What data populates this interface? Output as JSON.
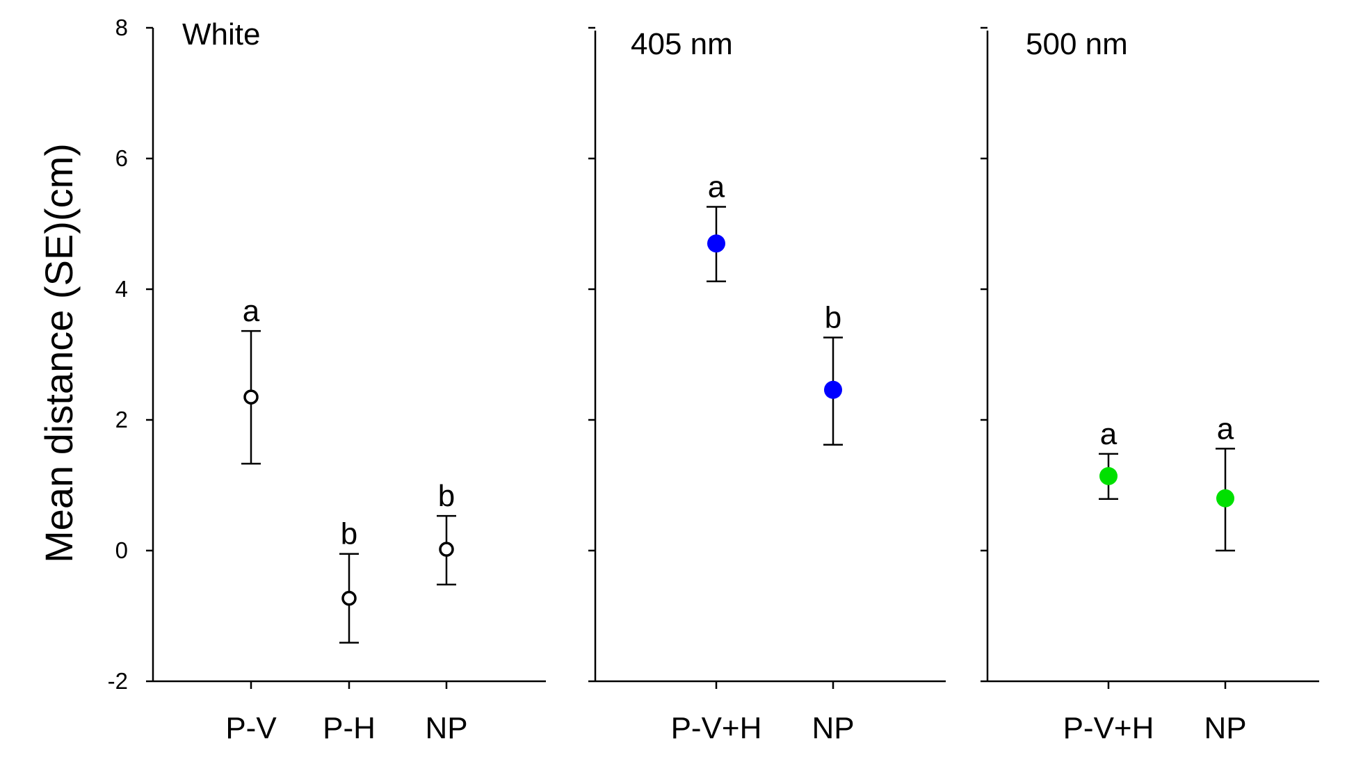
{
  "chart_data": {
    "type": "scatter",
    "y_title": "Mean distance (SE)(cm)",
    "ylim": [
      -2,
      8
    ],
    "yticks": [
      -2,
      0,
      2,
      4,
      6,
      8
    ],
    "yticklabels": [
      "-2",
      "0",
      "2",
      "4",
      "6",
      "8"
    ],
    "grid": false,
    "panels": [
      {
        "title": "White",
        "color": "#ffffff",
        "marker": "open-circle",
        "categories": [
          "P-V",
          "P-H",
          "NP"
        ],
        "values": [
          2.35,
          -0.73,
          0.02
        ],
        "se_lower": [
          1.33,
          -1.41,
          -0.52
        ],
        "se_upper": [
          3.36,
          -0.05,
          0.53
        ],
        "significance": [
          "a",
          "b",
          "b"
        ]
      },
      {
        "title": "405 nm",
        "color": "#0000ff",
        "marker": "filled-circle",
        "categories": [
          "P-V+H",
          "NP"
        ],
        "values": [
          4.7,
          2.46
        ],
        "se_lower": [
          4.12,
          1.62
        ],
        "se_upper": [
          5.26,
          3.26
        ],
        "significance": [
          "a",
          "b"
        ]
      },
      {
        "title": "500 nm",
        "color": "#00e000",
        "marker": "filled-circle",
        "categories": [
          "P-V+H",
          "NP"
        ],
        "values": [
          1.14,
          0.8
        ],
        "se_lower": [
          0.79,
          0.0
        ],
        "se_upper": [
          1.48,
          1.56
        ],
        "significance": [
          "a",
          "a"
        ]
      }
    ]
  }
}
